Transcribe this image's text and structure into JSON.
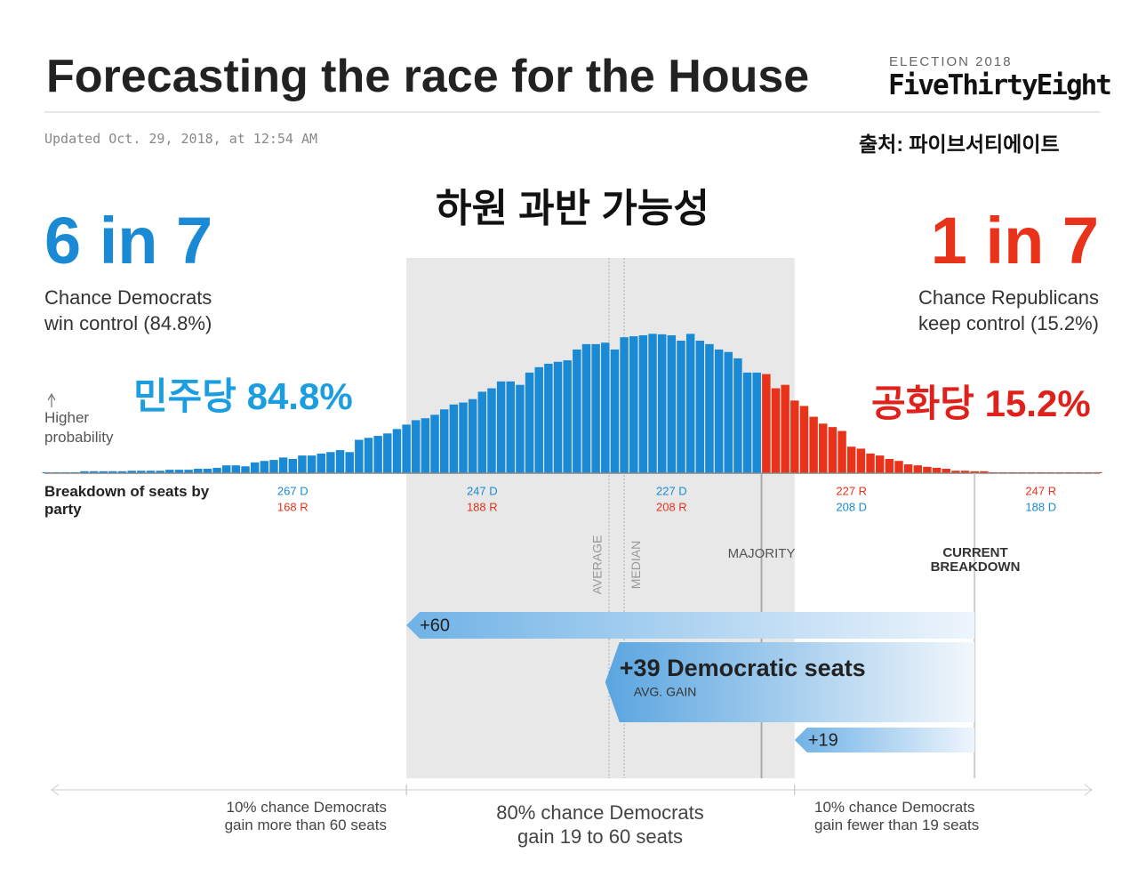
{
  "header": {
    "title": "Forecasting the race for the House",
    "brand_small": "ELECTION 2018",
    "brand": "FiveThirtyEight",
    "updated": "Updated Oct. 29, 2018, at 12:54 AM",
    "source": "출처: 파이브서티에이트"
  },
  "overlay": {
    "title": "하원 과반 가능성",
    "dem": "민주당 84.8%",
    "rep": "공화당 15.2%"
  },
  "odds": {
    "dem": "6 in 7",
    "dem_text": "Chance Democrats\nwin control (84.8%)",
    "rep": "1 in 7",
    "rep_text": "Chance Republicans\nkeep control (15.2%)"
  },
  "chart_data": {
    "type": "bar",
    "y_label": "Higher probability",
    "x_label": "Breakdown of seats by party",
    "x": [
      293,
      292,
      291,
      290,
      289,
      288,
      287,
      286,
      285,
      284,
      283,
      282,
      281,
      280,
      279,
      278,
      277,
      276,
      275,
      274,
      273,
      272,
      271,
      270,
      269,
      268,
      267,
      266,
      265,
      264,
      263,
      262,
      261,
      260,
      259,
      258,
      257,
      256,
      255,
      254,
      253,
      252,
      251,
      250,
      249,
      248,
      247,
      246,
      245,
      244,
      243,
      242,
      241,
      240,
      239,
      238,
      237,
      236,
      235,
      234,
      233,
      232,
      231,
      230,
      229,
      228,
      227,
      226,
      225,
      224,
      223,
      222,
      221,
      220,
      219,
      218,
      217,
      216,
      215,
      214,
      213,
      212,
      211,
      210,
      209,
      208,
      207,
      206,
      205,
      204,
      203,
      202,
      201,
      200,
      199,
      198,
      197,
      196,
      195,
      194,
      193,
      192,
      191,
      190,
      189,
      188,
      187,
      186,
      185,
      184,
      183,
      182
    ],
    "values": [
      0.02,
      0.02,
      0.02,
      0.02,
      0.04,
      0.04,
      0.04,
      0.04,
      0.04,
      0.05,
      0.05,
      0.05,
      0.05,
      0.07,
      0.07,
      0.07,
      0.09,
      0.09,
      0.11,
      0.16,
      0.16,
      0.14,
      0.22,
      0.25,
      0.27,
      0.32,
      0.29,
      0.36,
      0.36,
      0.4,
      0.43,
      0.47,
      0.43,
      0.68,
      0.72,
      0.76,
      0.81,
      0.9,
      0.99,
      1.08,
      1.12,
      1.19,
      1.3,
      1.4,
      1.44,
      1.51,
      1.66,
      1.73,
      1.87,
      1.87,
      1.8,
      2.05,
      2.16,
      2.23,
      2.27,
      2.3,
      2.52,
      2.63,
      2.63,
      2.66,
      2.52,
      2.77,
      2.79,
      2.81,
      2.84,
      2.83,
      2.81,
      2.7,
      2.84,
      2.7,
      2.63,
      2.52,
      2.47,
      2.34,
      2.05,
      2.05,
      2.02,
      1.73,
      1.8,
      1.48,
      1.37,
      1.15,
      1.01,
      0.94,
      0.86,
      0.54,
      0.5,
      0.4,
      0.36,
      0.29,
      0.25,
      0.18,
      0.16,
      0.13,
      0.11,
      0.09,
      0.05,
      0.05,
      0.04,
      0.04,
      0.02,
      0.02,
      0.02,
      0.02,
      0.02,
      0.02,
      0.02,
      0.02,
      0.02,
      0.02,
      0.02,
      0.02
    ],
    "xlim": [
      293.5,
      181.5
    ],
    "ylim": [
      0,
      2.9
    ],
    "xticks": [
      {
        "value": 267,
        "label": "267 D",
        "label2": "168 R"
      },
      {
        "value": 247,
        "label": "247 D",
        "label2": "188 R"
      },
      {
        "value": 227,
        "label": "227 D",
        "label2": "208 R"
      },
      {
        "value": 208,
        "label": "227 R",
        "label2": "208 D"
      },
      {
        "value": 188,
        "label": "247 R",
        "label2": "188 D"
      }
    ],
    "colors": {
      "dem": "#1a8ad4",
      "rep": "#e8321a"
    },
    "majority": 218,
    "majority_label": "MAJORITY",
    "current": 195,
    "current_label": "CURRENT\nBREAKDOWN",
    "average": 233.6,
    "average_label": "AVERAGE",
    "median": 232,
    "median_label": "MEDIAN",
    "gains": {
      "values": [
        60,
        39,
        19
      ],
      "value_labels": [
        "+60",
        "+39 Democratic seats",
        "+19"
      ],
      "avg_label": "AVG. GAIN"
    },
    "bottom": [
      "10% chance Democrats\ngain more than 60 seats",
      "80% chance Democrats\ngain 19 to 60 seats",
      "10% chance Democrats\ngain fewer than 19 seats"
    ]
  }
}
